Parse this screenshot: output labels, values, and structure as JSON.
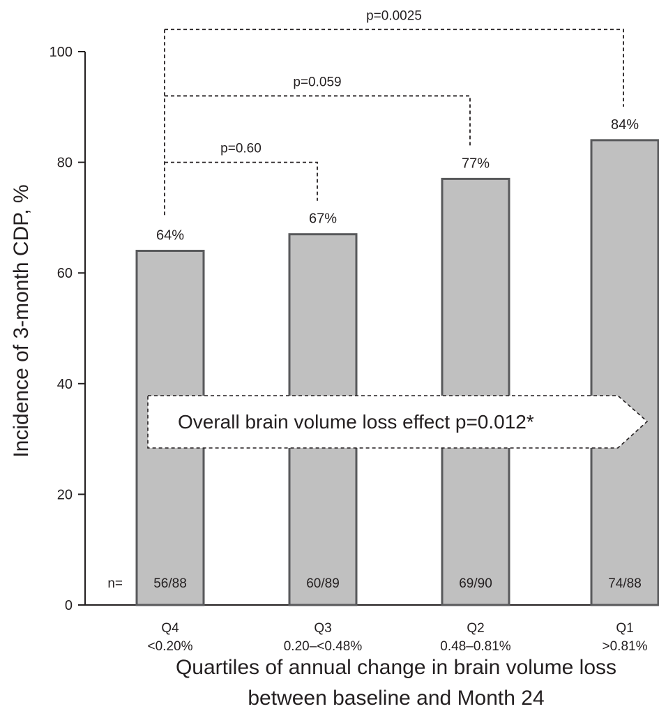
{
  "chart_data": {
    "type": "bar",
    "categories": [
      {
        "code": "Q4",
        "range": "<0.20%"
      },
      {
        "code": "Q3",
        "range": "0.20–<0.48%"
      },
      {
        "code": "Q2",
        "range": "0.48–0.81%"
      },
      {
        "code": "Q1",
        "range": ">0.81%"
      }
    ],
    "values": [
      64,
      67,
      77,
      84
    ],
    "value_labels": [
      "64%",
      "67%",
      "77%",
      "84%"
    ],
    "n_prefix": "n=",
    "n_labels": [
      "56/88",
      "60/89",
      "69/90",
      "74/88"
    ],
    "ylabel": "Incidence of 3-month CDP, %",
    "xlabel_lines": [
      "Quartiles of annual change in brain volume loss",
      "between baseline and Month 24"
    ],
    "ylim": [
      0,
      100
    ],
    "yticks": [
      0,
      20,
      40,
      60,
      80,
      100
    ],
    "comparisons": [
      {
        "from": 0,
        "to": 1,
        "level": 80,
        "label": "p=0.60"
      },
      {
        "from": 0,
        "to": 2,
        "level": 92,
        "label": "p=0.059"
      },
      {
        "from": 0,
        "to": 3,
        "level": 104,
        "label": "p=0.0025"
      }
    ],
    "banner": "Overall brain volume loss effect p=0.012*",
    "colors": {
      "bar_fill": "#c0c0c0",
      "bar_stroke": "#58595b",
      "text": "#231f20"
    }
  }
}
